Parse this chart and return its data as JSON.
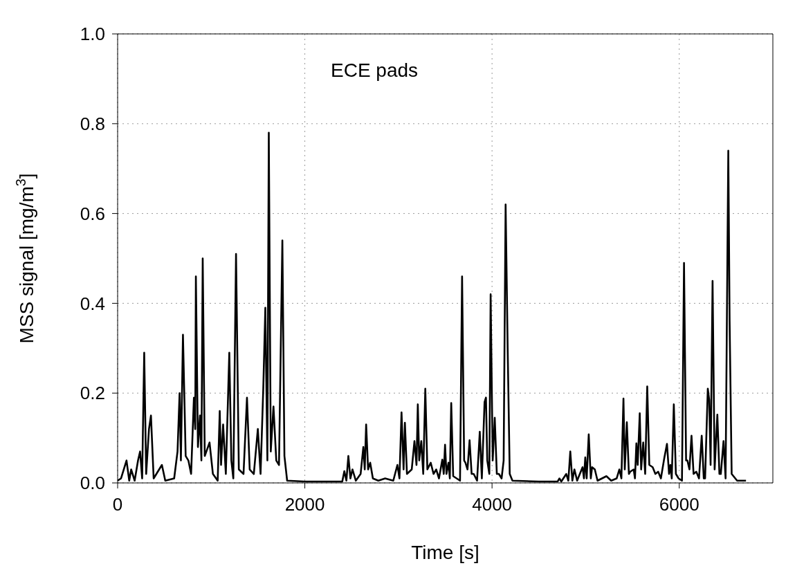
{
  "chart_data": {
    "type": "line",
    "xlabel": "Time [s]",
    "ylabel": "MSS signal [mg/m$^{3}$]",
    "annotations": [
      "ECE pads"
    ],
    "xlim": [
      0,
      7000
    ],
    "xticks": [
      0,
      2000,
      4000,
      6000
    ],
    "ylim": [
      0,
      1
    ],
    "yticks": [
      {
        "value": 0,
        "label": "0.0"
      },
      {
        "value": 0.2,
        "label": "0.2"
      },
      {
        "value": 0.4,
        "label": "0.4"
      },
      {
        "value": 0.6,
        "label": "0.6"
      },
      {
        "value": 0.8,
        "label": "0.8"
      },
      {
        "value": 1,
        "label": "1.0"
      }
    ],
    "grid": true,
    "line_style": "solid",
    "series": [
      {
        "color": "#000000",
        "x": [
          0,
          36,
          95,
          124,
          145,
          182,
          218,
          240,
          262,
          284,
          305,
          335,
          356,
          385,
          473,
          509,
          604,
          640,
          662,
          676,
          698,
          727,
          756,
          785,
          815,
          829,
          836,
          858,
          880,
          895,
          909,
          931,
          982,
          1018,
          1069,
          1091,
          1105,
          1127,
          1156,
          1193,
          1215,
          1236,
          1265,
          1295,
          1345,
          1382,
          1411,
          1455,
          1498,
          1527,
          1556,
          1578,
          1600,
          1615,
          1636,
          1665,
          1695,
          1724,
          1760,
          1782,
          1811,
          2000,
          2400,
          2422,
          2444,
          2465,
          2487,
          2509,
          2545,
          2596,
          2625,
          2640,
          2655,
          2676,
          2698,
          2727,
          2785,
          2858,
          2945,
          2989,
          3011,
          3033,
          3055,
          3069,
          3091,
          3142,
          3171,
          3193,
          3207,
          3222,
          3244,
          3265,
          3287,
          3309,
          3345,
          3375,
          3404,
          3433,
          3469,
          3484,
          3498,
          3513,
          3535,
          3549,
          3564,
          3585,
          3622,
          3658,
          3680,
          3702,
          3716,
          3738,
          3760,
          3782,
          3804,
          3840,
          3869,
          3891,
          3920,
          3935,
          3949,
          3971,
          3985,
          4007,
          4029,
          4051,
          4073,
          4102,
          4124,
          4145,
          4167,
          4189,
          4218,
          4500,
          4700,
          4720,
          4740,
          4793,
          4815,
          4836,
          4858,
          4880,
          4909,
          4967,
          4982,
          4996,
          5011,
          5033,
          5055,
          5069,
          5098,
          5127,
          5222,
          5273,
          5331,
          5360,
          5382,
          5404,
          5418,
          5440,
          5462,
          5476,
          5513,
          5527,
          5542,
          5556,
          5578,
          5593,
          5615,
          5636,
          5658,
          5680,
          5716,
          5745,
          5775,
          5804,
          5840,
          5869,
          5891,
          5905,
          5920,
          5942,
          5964,
          5993,
          6029,
          6051,
          6073,
          6087,
          6109,
          6131,
          6153,
          6182,
          6211,
          6240,
          6262,
          6276,
          6305,
          6320,
          6335,
          6356,
          6378,
          6407,
          6429,
          6444,
          6473,
          6495,
          6524,
          6538,
          6560,
          6618,
          6713
        ],
        "values": [
          0.005,
          0.01,
          0.05,
          0.005,
          0.03,
          0.005,
          0.05,
          0.07,
          0.01,
          0.29,
          0.02,
          0.12,
          0.15,
          0.01,
          0.04,
          0.005,
          0.01,
          0.07,
          0.2,
          0.05,
          0.33,
          0.06,
          0.05,
          0.02,
          0.19,
          0.12,
          0.46,
          0.08,
          0.15,
          0.05,
          0.5,
          0.06,
          0.09,
          0.02,
          0.005,
          0.16,
          0.04,
          0.13,
          0.02,
          0.29,
          0.05,
          0.01,
          0.51,
          0.03,
          0.02,
          0.19,
          0.03,
          0.02,
          0.12,
          0.02,
          0.21,
          0.39,
          0.05,
          0.78,
          0.07,
          0.17,
          0.05,
          0.04,
          0.54,
          0.06,
          0.005,
          0.003,
          0.003,
          0.026,
          0.005,
          0.06,
          0.01,
          0.03,
          0.005,
          0.02,
          0.08,
          0.03,
          0.13,
          0.03,
          0.045,
          0.01,
          0.005,
          0.01,
          0.005,
          0.04,
          0.01,
          0.157,
          0.03,
          0.134,
          0.02,
          0.03,
          0.093,
          0.04,
          0.175,
          0.05,
          0.093,
          0.02,
          0.21,
          0.03,
          0.045,
          0.02,
          0.03,
          0.01,
          0.052,
          0.02,
          0.085,
          0.02,
          0.045,
          0.01,
          0.178,
          0.015,
          0.01,
          0.005,
          0.46,
          0.05,
          0.045,
          0.03,
          0.095,
          0.02,
          0.02,
          0.005,
          0.114,
          0.01,
          0.18,
          0.19,
          0.05,
          0.02,
          0.42,
          0.05,
          0.145,
          0.02,
          0.02,
          0.01,
          0.05,
          0.62,
          0.3,
          0.02,
          0.005,
          0.003,
          0.003,
          0.01,
          0.003,
          0.02,
          0.005,
          0.07,
          0.005,
          0.03,
          0.005,
          0.035,
          0.01,
          0.057,
          0.01,
          0.108,
          0.01,
          0.035,
          0.03,
          0.005,
          0.015,
          0.005,
          0.01,
          0.03,
          0.01,
          0.188,
          0.03,
          0.135,
          0.02,
          0.025,
          0.03,
          0.01,
          0.088,
          0.04,
          0.155,
          0.03,
          0.09,
          0.02,
          0.215,
          0.04,
          0.035,
          0.02,
          0.025,
          0.01,
          0.055,
          0.087,
          0.02,
          0.04,
          0.01,
          0.175,
          0.02,
          0.01,
          0.005,
          0.49,
          0.05,
          0.05,
          0.03,
          0.105,
          0.02,
          0.025,
          0.01,
          0.105,
          0.01,
          0.01,
          0.21,
          0.185,
          0.04,
          0.45,
          0.03,
          0.152,
          0.02,
          0.02,
          0.093,
          0.01,
          0.74,
          0.36,
          0.02,
          0.005,
          0.005
        ]
      }
    ]
  }
}
